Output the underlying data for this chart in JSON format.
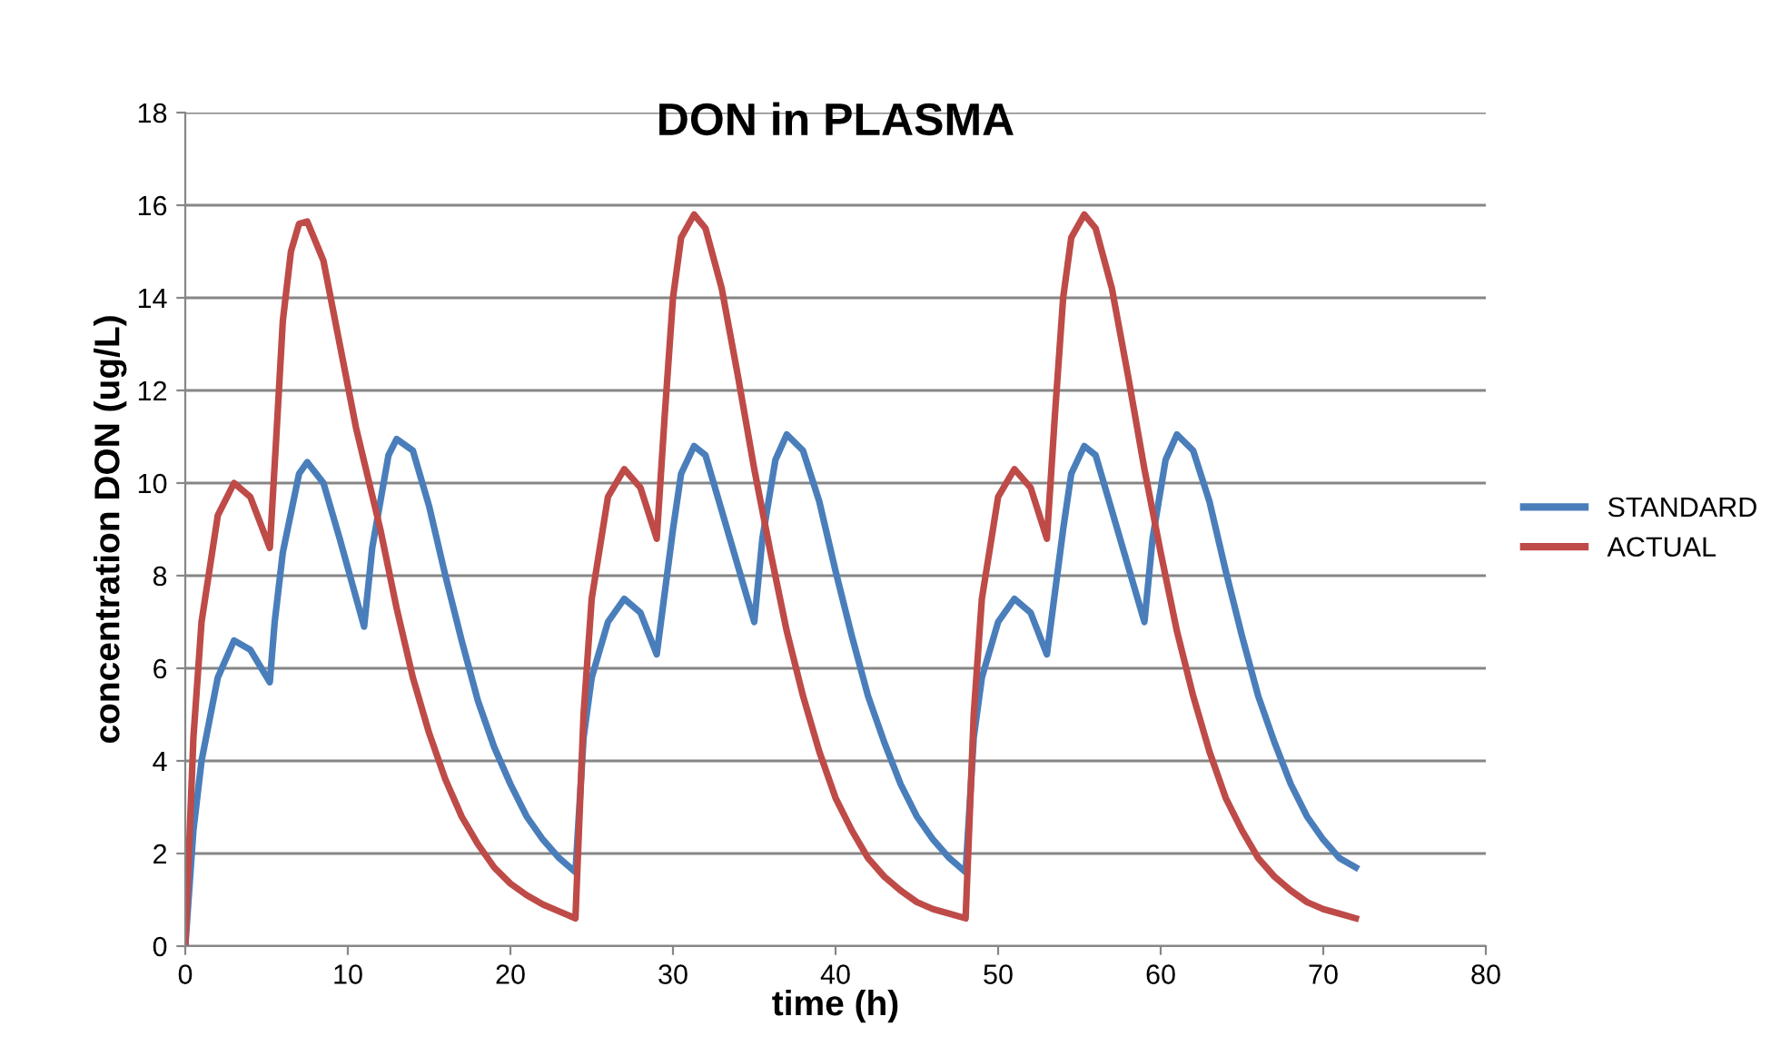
{
  "chart_data": {
    "type": "line",
    "title": "DON in PLASMA",
    "xlabel": "time (h)",
    "ylabel": "concentration DON (ug/L)",
    "xlim": [
      0,
      80
    ],
    "xticks": [
      0,
      10,
      20,
      30,
      40,
      50,
      60,
      70,
      80
    ],
    "ylim": [
      0,
      18
    ],
    "yticks": [
      0,
      2,
      4,
      6,
      8,
      10,
      12,
      14,
      16,
      18
    ],
    "grid": "y",
    "legend": "right",
    "marker": "none",
    "line_style": "solid",
    "series": [
      {
        "name": "STANDARD",
        "color": "#4a7ebb",
        "x": [
          0,
          0.5,
          1,
          2,
          3,
          4,
          5.2,
          5.5,
          6,
          7,
          7.5,
          8.5,
          9.5,
          11,
          11.5,
          12.5,
          13,
          14,
          15,
          16,
          17,
          18,
          19,
          20,
          21,
          22,
          23,
          24,
          24.5,
          25,
          26,
          27,
          28,
          29,
          30,
          30.5,
          31.3,
          32,
          33,
          35,
          35.5,
          36.3,
          37,
          38,
          39,
          40,
          41,
          42,
          43,
          44,
          45,
          46,
          47,
          48,
          48.5,
          49,
          50,
          51,
          52,
          53,
          54,
          54.5,
          55.3,
          56,
          57,
          59,
          59.5,
          60.3,
          61,
          62,
          63,
          64,
          65,
          66,
          67,
          68,
          69,
          70,
          71,
          72
        ],
        "values": [
          0,
          2.5,
          4,
          5.8,
          6.6,
          6.4,
          5.7,
          7,
          8.5,
          10.2,
          10.45,
          10,
          8.8,
          6.9,
          8.6,
          10.6,
          10.95,
          10.7,
          9.5,
          8,
          6.6,
          5.3,
          4.3,
          3.5,
          2.8,
          2.3,
          1.9,
          1.6,
          4.5,
          5.8,
          7,
          7.5,
          7.2,
          6.3,
          9,
          10.2,
          10.8,
          10.6,
          9.4,
          7,
          8.8,
          10.5,
          11.05,
          10.7,
          9.6,
          8.1,
          6.7,
          5.4,
          4.4,
          3.5,
          2.8,
          2.3,
          1.9,
          1.6,
          4.5,
          5.8,
          7,
          7.5,
          7.2,
          6.3,
          9,
          10.2,
          10.8,
          10.6,
          9.4,
          7,
          8.8,
          10.5,
          11.05,
          10.7,
          9.6,
          8.1,
          6.7,
          5.4,
          4.4,
          3.5,
          2.8,
          2.3,
          1.9,
          1.7
        ]
      },
      {
        "name": "ACTUAL",
        "color": "#be4b48",
        "x": [
          0,
          0.5,
          1,
          2,
          3,
          4,
          5.2,
          5.6,
          6,
          6.5,
          7,
          7.5,
          8.5,
          9.5,
          10.5,
          12,
          13,
          14,
          15,
          16,
          17,
          18,
          19,
          20,
          21,
          22,
          23,
          24,
          24.5,
          25,
          26,
          27,
          28,
          29,
          29.5,
          30,
          30.5,
          31.3,
          32,
          33,
          34,
          35,
          36,
          37,
          38,
          39,
          40,
          41,
          42,
          43,
          44,
          45,
          46,
          47,
          48,
          48.5,
          49,
          50,
          51,
          52,
          53,
          53.5,
          54,
          54.5,
          55.3,
          56,
          57,
          58,
          59,
          60,
          61,
          62,
          63,
          64,
          65,
          66,
          67,
          68,
          69,
          70,
          71,
          72
        ],
        "values": [
          0,
          4.5,
          7,
          9.3,
          10,
          9.7,
          8.6,
          11,
          13.5,
          15,
          15.6,
          15.65,
          14.8,
          13,
          11.2,
          9,
          7.3,
          5.8,
          4.6,
          3.6,
          2.8,
          2.2,
          1.7,
          1.35,
          1.1,
          0.9,
          0.75,
          0.6,
          5,
          7.5,
          9.7,
          10.3,
          9.9,
          8.8,
          11.5,
          14,
          15.3,
          15.8,
          15.5,
          14.2,
          12.3,
          10.3,
          8.5,
          6.8,
          5.4,
          4.2,
          3.2,
          2.5,
          1.9,
          1.5,
          1.2,
          0.95,
          0.8,
          0.7,
          0.6,
          5,
          7.5,
          9.7,
          10.3,
          9.9,
          8.8,
          11.5,
          14,
          15.3,
          15.8,
          15.5,
          14.2,
          12.3,
          10.3,
          8.5,
          6.8,
          5.4,
          4.2,
          3.2,
          2.5,
          1.9,
          1.5,
          1.2,
          0.95,
          0.8,
          0.7,
          0.6
        ]
      }
    ]
  }
}
